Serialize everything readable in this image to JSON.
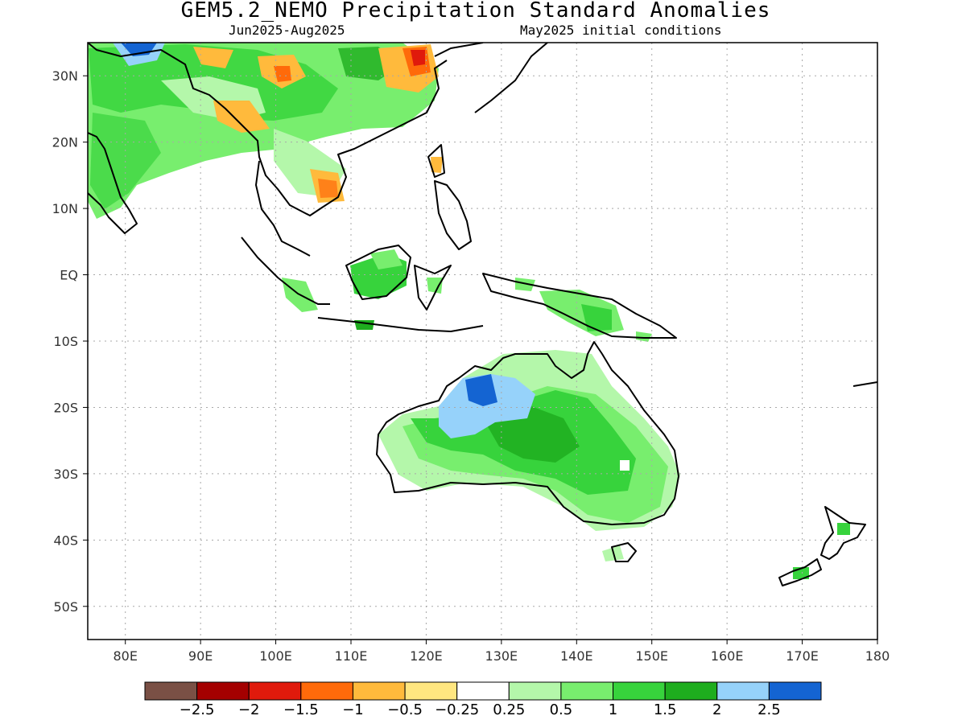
{
  "title": "GEM5.2_NEMO Precipitation Standard Anomalies",
  "subtitle_left": "Jun2025-Aug2025",
  "subtitle_right": "May2025 initial conditions",
  "map": {
    "lon_range": [
      75,
      180
    ],
    "lat_range": [
      -55,
      35
    ],
    "lon_ticks": [
      "80E",
      "90E",
      "100E",
      "110E",
      "120E",
      "130E",
      "140E",
      "150E",
      "160E",
      "170E",
      "180"
    ],
    "lat_ticks": [
      "30N",
      "20N",
      "10N",
      "EQ",
      "10S",
      "20S",
      "30S",
      "40S",
      "50S"
    ],
    "gridlines": true
  },
  "colorbar": {
    "colors": [
      "#7a5045",
      "#a40000",
      "#e01a0c",
      "#ff6a0a",
      "#ffba3c",
      "#ffe680",
      "#ffffff",
      "#b4f7aa",
      "#78ee6e",
      "#37d33c",
      "#1ead1e",
      "#96d2fa",
      "#1464d2"
    ],
    "labels": [
      "−2.5",
      "−2",
      "−1.5",
      "−1",
      "−0.5",
      "−0.25",
      "0.25",
      "0.5",
      "1",
      "1.5",
      "2",
      "2.5"
    ]
  }
}
